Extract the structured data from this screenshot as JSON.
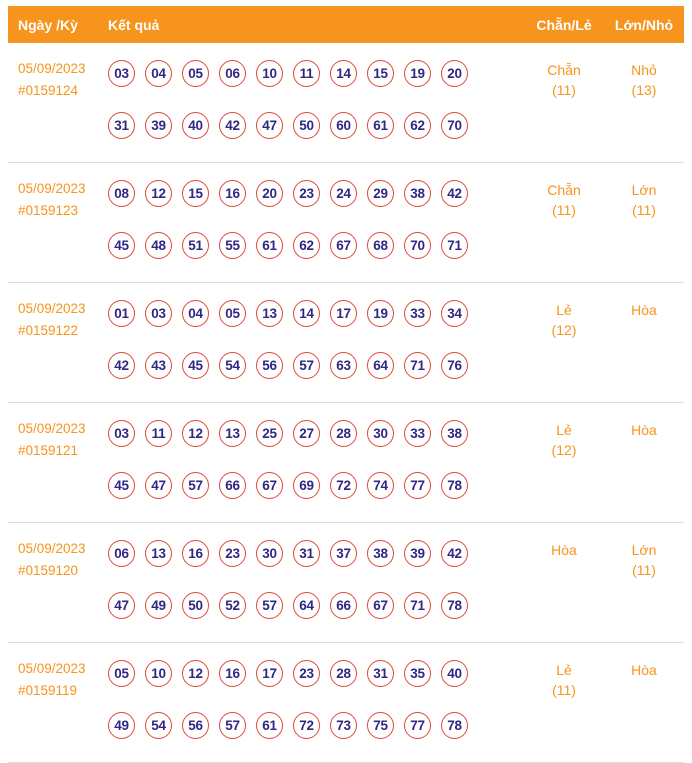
{
  "colors": {
    "orange": "#F7941D",
    "navy": "#312783",
    "ball-border": "#E0483A",
    "separator": "#dcdcdc"
  },
  "header": {
    "col_date": "Ngày /Kỳ",
    "col_result": "Kết quả",
    "col_parity": "Chẵn/Lẻ",
    "col_size": "Lớn/Nhỏ"
  },
  "rows": [
    {
      "date": "05/09/2023",
      "id": "#0159124",
      "numbers_row1": [
        "03",
        "04",
        "05",
        "06",
        "10",
        "11",
        "14",
        "15",
        "19",
        "20"
      ],
      "numbers_row2": [
        "31",
        "39",
        "40",
        "42",
        "47",
        "50",
        "60",
        "61",
        "62",
        "70"
      ],
      "parity": "Chẵn",
      "parity_count": "(11)",
      "size": "Nhỏ",
      "size_count": "(13)"
    },
    {
      "date": "05/09/2023",
      "id": "#0159123",
      "numbers_row1": [
        "08",
        "12",
        "15",
        "16",
        "20",
        "23",
        "24",
        "29",
        "38",
        "42"
      ],
      "numbers_row2": [
        "45",
        "48",
        "51",
        "55",
        "61",
        "62",
        "67",
        "68",
        "70",
        "71"
      ],
      "parity": "Chẵn",
      "parity_count": "(11)",
      "size": "Lớn",
      "size_count": "(11)"
    },
    {
      "date": "05/09/2023",
      "id": "#0159122",
      "numbers_row1": [
        "01",
        "03",
        "04",
        "05",
        "13",
        "14",
        "17",
        "19",
        "33",
        "34"
      ],
      "numbers_row2": [
        "42",
        "43",
        "45",
        "54",
        "56",
        "57",
        "63",
        "64",
        "71",
        "76"
      ],
      "parity": "Lẻ",
      "parity_count": "(12)",
      "size": "Hòa",
      "size_count": ""
    },
    {
      "date": "05/09/2023",
      "id": "#0159121",
      "numbers_row1": [
        "03",
        "11",
        "12",
        "13",
        "25",
        "27",
        "28",
        "30",
        "33",
        "38"
      ],
      "numbers_row2": [
        "45",
        "47",
        "57",
        "66",
        "67",
        "69",
        "72",
        "74",
        "77",
        "78"
      ],
      "parity": "Lẻ",
      "parity_count": "(12)",
      "size": "Hòa",
      "size_count": ""
    },
    {
      "date": "05/09/2023",
      "id": "#0159120",
      "numbers_row1": [
        "06",
        "13",
        "16",
        "23",
        "30",
        "31",
        "37",
        "38",
        "39",
        "42"
      ],
      "numbers_row2": [
        "47",
        "49",
        "50",
        "52",
        "57",
        "64",
        "66",
        "67",
        "71",
        "78"
      ],
      "parity": "Hòa",
      "parity_count": "",
      "size": "Lớn",
      "size_count": "(11)"
    },
    {
      "date": "05/09/2023",
      "id": "#0159119",
      "numbers_row1": [
        "05",
        "10",
        "12",
        "16",
        "17",
        "23",
        "28",
        "31",
        "35",
        "40"
      ],
      "numbers_row2": [
        "49",
        "54",
        "56",
        "57",
        "61",
        "72",
        "73",
        "75",
        "77",
        "78"
      ],
      "parity": "Lẻ",
      "parity_count": "(11)",
      "size": "Hòa",
      "size_count": ""
    }
  ]
}
